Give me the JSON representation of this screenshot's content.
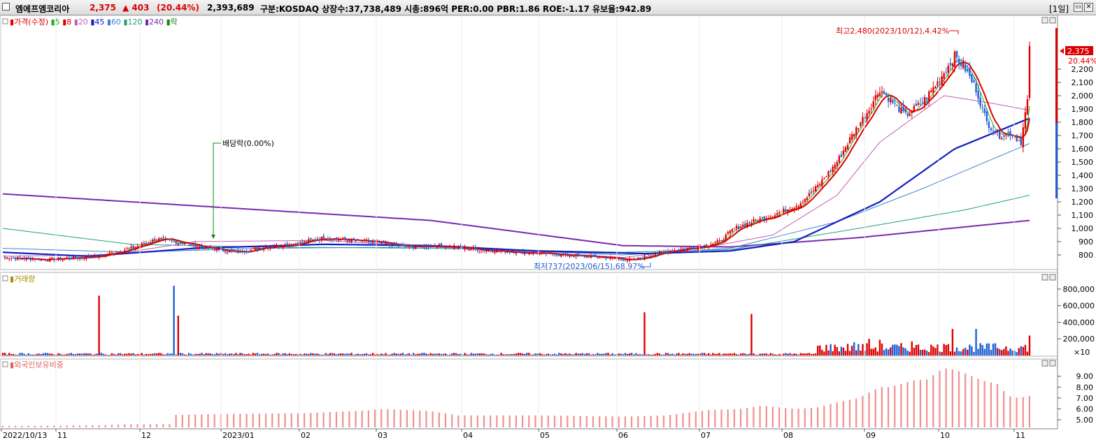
{
  "title": {
    "name": "엠에프엠코리아",
    "price": "2,375",
    "change": "▲ 403",
    "change_pct": "(20.44%)",
    "volume": "2,393,689",
    "info": "구분:KOSDAQ 상장수:37,738,489 시총:896억 PER:0.00 PBR:1.86 ROE:-1.17 유보율:942.89",
    "period": "[1일]"
  },
  "colors": {
    "up": "#dd0000",
    "down": "#1f5fd6",
    "ma5": "#22aa22",
    "ma8": "#dd0000",
    "ma20": "#c060b0",
    "ma45": "#1020c0",
    "ma60": "#4080d0",
    "ma120": "#20a080",
    "ma240": "#7a2ab0"
  },
  "price_panel": {
    "legend": [
      {
        "label": "가격(수정)",
        "color": "#dd0000"
      },
      {
        "label": "5",
        "color": "#22aa22"
      },
      {
        "label": "8",
        "color": "#dd0000"
      },
      {
        "label": "20",
        "color": "#c060b0"
      },
      {
        "label": "45",
        "color": "#1020c0"
      },
      {
        "label": "60",
        "color": "#4080d0"
      },
      {
        "label": "120",
        "color": "#20a080"
      },
      {
        "label": "240",
        "color": "#7a2ab0"
      },
      {
        "label": "락",
        "color": "#118811"
      }
    ],
    "annotations": {
      "high": "최고2,480(2023/10/12),4.42%",
      "low": "최저737(2023/06/15),68.97%",
      "dividend": "배당락(0.00%)"
    },
    "current_price_label": "2,375",
    "current_pct_label": "20.44%",
    "y_ticks": [
      "2,200",
      "2,100",
      "2,000",
      "1,900",
      "1,800",
      "1,700",
      "1,600",
      "1,500",
      "1,400",
      "1,300",
      "1,200",
      "1,100",
      "1,000",
      "900",
      "800"
    ]
  },
  "volume_panel": {
    "legend": "거래량",
    "y_ticks": [
      "800,000",
      "600,000",
      "400,000",
      "200,000"
    ],
    "unit": "×10"
  },
  "foreign_panel": {
    "legend": "외국인보유비중",
    "y_ticks": [
      "9.00",
      "8.00",
      "7.00",
      "6.00",
      "5.00"
    ]
  },
  "x_axis": {
    "labels": [
      "2022/10/13",
      "11",
      "12",
      "2023/01",
      "02",
      "03",
      "04",
      "05",
      "06",
      "07",
      "08",
      "09",
      "10",
      "11"
    ]
  },
  "chart_data": {
    "type": "candlestick",
    "anchors_close": [
      [
        0,
        780
      ],
      [
        20,
        765
      ],
      [
        45,
        790
      ],
      [
        62,
        860
      ],
      [
        72,
        920
      ],
      [
        85,
        890
      ],
      [
        95,
        850
      ],
      [
        110,
        820
      ],
      [
        122,
        860
      ],
      [
        135,
        880
      ],
      [
        150,
        930
      ],
      [
        162,
        910
      ],
      [
        176,
        890
      ],
      [
        190,
        860
      ],
      [
        206,
        870
      ],
      [
        222,
        840
      ],
      [
        242,
        820
      ],
      [
        262,
        800
      ],
      [
        282,
        780
      ],
      [
        295,
        760
      ],
      [
        305,
        810
      ],
      [
        315,
        840
      ],
      [
        325,
        860
      ],
      [
        335,
        900
      ],
      [
        342,
        1000
      ],
      [
        350,
        1050
      ],
      [
        360,
        1100
      ],
      [
        372,
        1180
      ],
      [
        380,
        1300
      ],
      [
        390,
        1500
      ],
      [
        397,
        1700
      ],
      [
        405,
        1900
      ],
      [
        410,
        2050
      ],
      [
        416,
        1950
      ],
      [
        422,
        1850
      ],
      [
        430,
        1950
      ],
      [
        437,
        2100
      ],
      [
        445,
        2300
      ],
      [
        450,
        2200
      ],
      [
        455,
        2050
      ],
      [
        460,
        1800
      ],
      [
        466,
        1700
      ],
      [
        471,
        1720
      ],
      [
        476,
        1650
      ],
      [
        479,
        1972
      ],
      [
        480,
        2375
      ]
    ],
    "ma_anchors": {
      "ma240": [
        [
          0,
          1260
        ],
        [
          60,
          1200
        ],
        [
          120,
          1140
        ],
        [
          200,
          1060
        ],
        [
          290,
          870
        ],
        [
          340,
          860
        ],
        [
          400,
          930
        ],
        [
          480,
          1060
        ]
      ],
      "ma120": [
        [
          0,
          1000
        ],
        [
          60,
          880
        ],
        [
          120,
          860
        ],
        [
          200,
          850
        ],
        [
          290,
          820
        ],
        [
          340,
          840
        ],
        [
          400,
          1000
        ],
        [
          450,
          1140
        ],
        [
          480,
          1250
        ]
      ],
      "ma60": [
        [
          0,
          850
        ],
        [
          60,
          820
        ],
        [
          120,
          850
        ],
        [
          200,
          860
        ],
        [
          290,
          800
        ],
        [
          340,
          850
        ],
        [
          390,
          1050
        ],
        [
          430,
          1300
        ],
        [
          480,
          1640
        ]
      ],
      "ma45": [
        [
          0,
          820
        ],
        [
          40,
          790
        ],
        [
          90,
          850
        ],
        [
          150,
          880
        ],
        [
          200,
          870
        ],
        [
          250,
          830
        ],
        [
          300,
          810
        ],
        [
          340,
          830
        ],
        [
          370,
          900
        ],
        [
          410,
          1200
        ],
        [
          445,
          1600
        ],
        [
          480,
          1830
        ]
      ],
      "ma20": [
        [
          0,
          790
        ],
        [
          50,
          800
        ],
        [
          90,
          900
        ],
        [
          150,
          910
        ],
        [
          200,
          860
        ],
        [
          250,
          820
        ],
        [
          290,
          780
        ],
        [
          330,
          860
        ],
        [
          360,
          950
        ],
        [
          390,
          1250
        ],
        [
          410,
          1650
        ],
        [
          440,
          2000
        ],
        [
          460,
          1950
        ],
        [
          480,
          1890
        ]
      ]
    },
    "volume": [
      [
        45,
        720000
      ],
      [
        80,
        840000
      ],
      [
        82,
        480000
      ],
      [
        300,
        520000
      ],
      [
        350,
        500000
      ],
      [
        398,
        160000
      ],
      [
        405,
        200000
      ],
      [
        410,
        190000
      ],
      [
        425,
        170000
      ],
      [
        440,
        140000
      ],
      [
        444,
        320000
      ],
      [
        455,
        320000
      ],
      [
        480,
        240000
      ]
    ],
    "foreign_ratio": [
      [
        0,
        4.45
      ],
      [
        47,
        4.5
      ],
      [
        58,
        4.6
      ],
      [
        79,
        4.6
      ],
      [
        80,
        5.45
      ],
      [
        110,
        5.55
      ],
      [
        140,
        5.6
      ],
      [
        170,
        5.85
      ],
      [
        178,
        6.0
      ],
      [
        200,
        5.8
      ],
      [
        213,
        5.4
      ],
      [
        250,
        5.4
      ],
      [
        290,
        5.3
      ],
      [
        310,
        5.4
      ],
      [
        330,
        5.9
      ],
      [
        345,
        6.0
      ],
      [
        355,
        6.3
      ],
      [
        370,
        6.0
      ],
      [
        380,
        6.1
      ],
      [
        390,
        6.6
      ],
      [
        400,
        7.0
      ],
      [
        410,
        8.0
      ],
      [
        415,
        8.0
      ],
      [
        425,
        8.6
      ],
      [
        432,
        8.7
      ],
      [
        440,
        9.75
      ],
      [
        445,
        9.6
      ],
      [
        452,
        9.1
      ],
      [
        458,
        8.6
      ],
      [
        465,
        8.3
      ],
      [
        470,
        7.2
      ],
      [
        475,
        7.0
      ],
      [
        480,
        7.2
      ]
    ],
    "price_range": [
      700,
      2500
    ],
    "volume_range": [
      0,
      900000
    ],
    "foreign_range": [
      4.3,
      10.2
    ]
  }
}
